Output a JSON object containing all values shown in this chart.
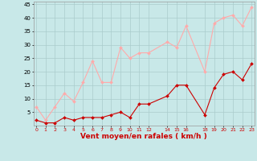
{
  "x_positions": [
    0,
    1,
    2,
    3,
    4,
    5,
    6,
    7,
    8,
    9,
    10,
    11,
    12,
    14,
    15,
    16,
    18,
    19,
    20,
    21,
    22,
    23
  ],
  "rafales_y": [
    7,
    2,
    7,
    12,
    9,
    16,
    24,
    16,
    16,
    29,
    25,
    27,
    27,
    31,
    29,
    37,
    20,
    38,
    40,
    41,
    37,
    44
  ],
  "moyen_y": [
    2,
    1,
    1,
    3,
    2,
    3,
    3,
    3,
    4,
    5,
    3,
    8,
    8,
    11,
    15,
    15,
    4,
    14,
    19,
    20,
    17,
    23
  ],
  "color_rafales": "#ffaaaa",
  "color_moyen": "#cc0000",
  "bg_color": "#c8e8e8",
  "grid_color": "#aacccc",
  "xlabel": "Vent moyen/en rafales ( km/h )",
  "ylim": [
    0,
    46
  ],
  "ytick_vals": [
    5,
    10,
    15,
    20,
    25,
    30,
    35,
    40,
    45
  ],
  "ytick_labels": [
    "5",
    "10",
    "15",
    "20",
    "25",
    "30",
    "35",
    "40",
    "45"
  ],
  "xtick_vals": [
    0,
    1,
    2,
    3,
    4,
    5,
    6,
    7,
    8,
    9,
    10,
    11,
    12,
    14,
    15,
    16,
    18,
    19,
    20,
    21,
    22,
    23
  ],
  "xtick_labels": [
    "0",
    "1",
    "2",
    "3",
    "4",
    "5",
    "6",
    "7",
    "8",
    "9",
    "10",
    "11",
    "12",
    "14",
    "15",
    "16",
    "18",
    "19",
    "20",
    "21",
    "22",
    "23"
  ],
  "tick_color": "#cc0000",
  "label_color": "#cc0000",
  "xlim": [
    -0.3,
    23.3
  ]
}
